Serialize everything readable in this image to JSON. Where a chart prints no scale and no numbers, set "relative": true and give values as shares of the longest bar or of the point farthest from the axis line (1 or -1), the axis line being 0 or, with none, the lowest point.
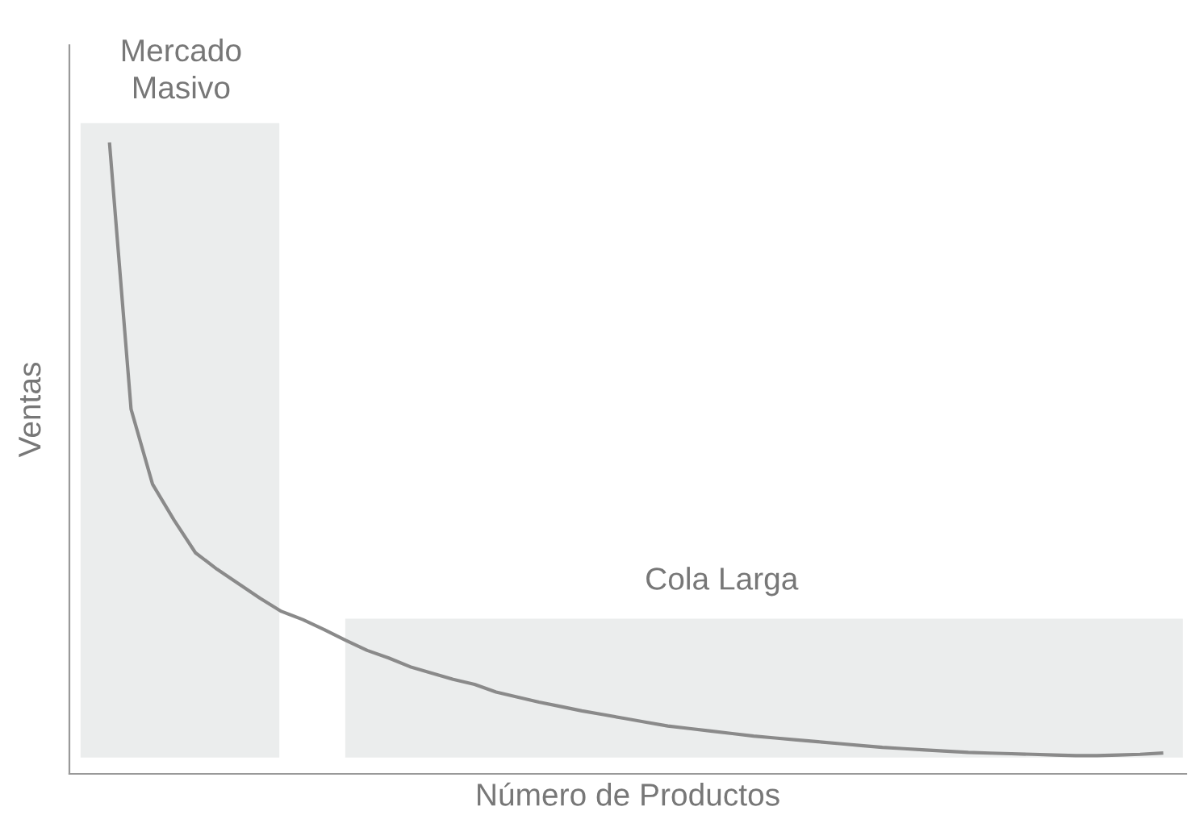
{
  "chart_data": {
    "type": "line",
    "relative": true,
    "xlabel": "Número de Productos",
    "ylabel": "Ventas",
    "annotations": [
      "Mercado Masivo",
      "Cola Larga"
    ],
    "categories": [
      null,
      null,
      null,
      null,
      null,
      null,
      null,
      null,
      null,
      null,
      null,
      null,
      null,
      null,
      null,
      null,
      null,
      null,
      null,
      null,
      null,
      null,
      null,
      null,
      null,
      null,
      null,
      null,
      null,
      null,
      null,
      null,
      null,
      null,
      null,
      null,
      null,
      null,
      null,
      null,
      null,
      null,
      null,
      null,
      null,
      null,
      null,
      null,
      null,
      null
    ],
    "series": [
      {
        "color": "#8a8a8a",
        "values": [
          1,
          0.579,
          0.46,
          0.403,
          0.351,
          0.325,
          0.302,
          0.279,
          0.258,
          0.245,
          0.229,
          0.212,
          0.196,
          0.184,
          0.17,
          0.16,
          0.15,
          0.142,
          0.13,
          0.122,
          0.114,
          0.107,
          0.1,
          0.094,
          0.088,
          0.082,
          0.076,
          0.072,
          0.068,
          0.064,
          0.06,
          0.057,
          0.054,
          0.051,
          0.048,
          0.045,
          0.042,
          0.04,
          0.038,
          0.036,
          0.034,
          0.033,
          0.032,
          0.031,
          0.03,
          0.029,
          0.029,
          0.03,
          0.031,
          0.033
        ]
      }
    ]
  }
}
